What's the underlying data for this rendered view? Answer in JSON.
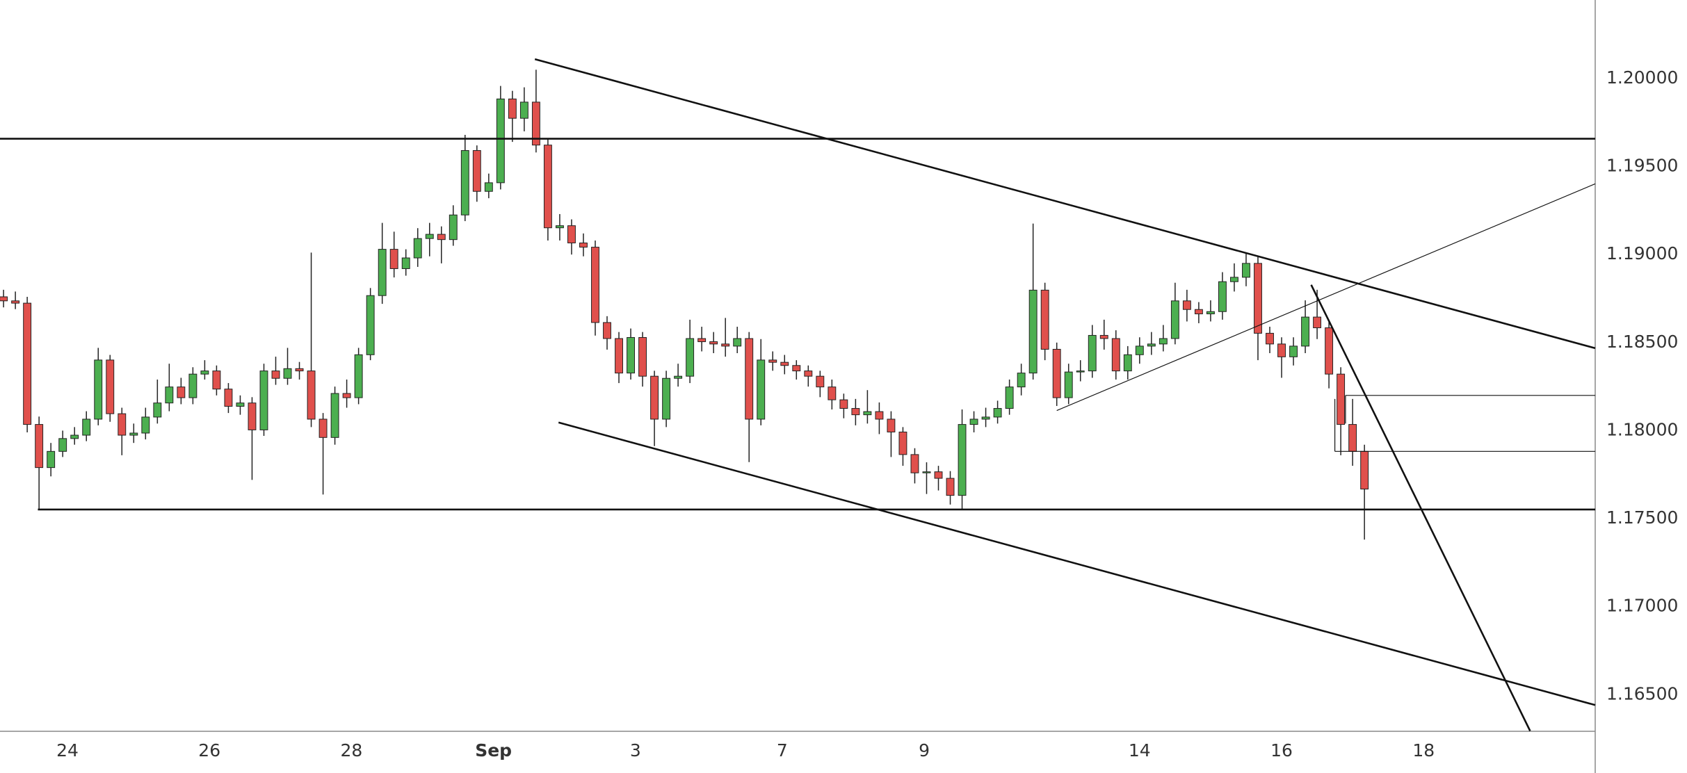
{
  "chart_data": {
    "type": "candlestick",
    "up_color": "#4caf50",
    "down_color": "#e0504c",
    "border_color": "#222222",
    "xlim": [
      -0.3,
      134.5
    ],
    "ylim": [
      1.16292,
      1.20446
    ],
    "yticks": [
      {
        "value": 1.2,
        "label": "1.20000"
      },
      {
        "value": 1.195,
        "label": "1.19500"
      },
      {
        "value": 1.19,
        "label": "1.19000"
      },
      {
        "value": 1.185,
        "label": "1.18500"
      },
      {
        "value": 1.18,
        "label": "1.18000"
      },
      {
        "value": 1.175,
        "label": "1.17500"
      },
      {
        "value": 1.17,
        "label": "1.17000"
      },
      {
        "value": 1.165,
        "label": "1.16500"
      }
    ],
    "xticks": [
      {
        "value": 5.4,
        "label": "24"
      },
      {
        "value": 17.4,
        "label": "26"
      },
      {
        "value": 29.4,
        "label": "28"
      },
      {
        "value": 41.4,
        "label": "Sep",
        "bold": true
      },
      {
        "value": 53.4,
        "label": "3"
      },
      {
        "value": 65.8,
        "label": "7"
      },
      {
        "value": 77.8,
        "label": "9"
      },
      {
        "value": 96,
        "label": "14"
      },
      {
        "value": 108,
        "label": "16"
      },
      {
        "value": 120,
        "label": "18"
      }
    ],
    "open": [
      1.1876,
      1.18737,
      1.18724,
      1.18035,
      1.1779,
      1.17882,
      1.17955,
      1.17974,
      1.18065,
      1.18401,
      1.18096,
      1.17974,
      1.17986,
      1.18077,
      1.18157,
      1.18248,
      1.18187,
      1.18321,
      1.18339,
      1.18236,
      1.18138,
      1.18157,
      1.18004,
      1.18339,
      1.18297,
      1.18352,
      1.18339,
      1.18065,
      1.17961,
      1.18211,
      1.18187,
      1.18431,
      1.18767,
      1.1903,
      1.1892,
      1.18981,
      1.19091,
      1.19115,
      1.19085,
      1.19225,
      1.19591,
      1.19359,
      1.19408,
      1.19884,
      1.19774,
      1.19866,
      1.19622,
      1.19152,
      1.19164,
      1.19066,
      1.19042,
      1.18614,
      1.18523,
      1.18327,
      1.18529,
      1.18309,
      1.18065,
      1.18297,
      1.18309,
      1.18523,
      1.18505,
      1.18492,
      1.1848,
      1.18523,
      1.18065,
      1.18401,
      1.18388,
      1.1837,
      1.18339,
      1.18309,
      1.18248,
      1.18175,
      1.18126,
      1.1809,
      1.18108,
      1.18065,
      1.17992,
      1.17864,
      1.1776,
      1.17766,
      1.17729,
      1.17632,
      1.18035,
      1.18065,
      1.18077,
      1.18126,
      1.18248,
      1.18327,
      1.18798,
      1.18462,
      1.18187,
      1.18333,
      1.18339,
      1.18541,
      1.18523,
      1.18339,
      1.18431,
      1.1848,
      1.18492,
      1.18523,
      1.18737,
      1.18688,
      1.18663,
      1.18676,
      1.18846,
      1.18871,
      1.1895,
      1.18553,
      1.18492,
      1.18419,
      1.1848,
      1.18645,
      1.18584,
      1.18321,
      1.18035,
      1.17882
    ],
    "high": [
      1.188,
      1.1879,
      1.1876,
      1.1808,
      1.1793,
      1.18,
      1.1802,
      1.1811,
      1.1847,
      1.1843,
      1.1813,
      1.1804,
      1.1813,
      1.1829,
      1.1838,
      1.183,
      1.1836,
      1.184,
      1.1837,
      1.1827,
      1.182,
      1.1819,
      1.1838,
      1.1842,
      1.1847,
      1.1839,
      1.19011,
      1.181,
      1.1825,
      1.1829,
      1.1847,
      1.1881,
      1.1918,
      1.1913,
      1.1903,
      1.1915,
      1.1918,
      1.1916,
      1.1928,
      1.1968,
      1.1962,
      1.1946,
      1.19958,
      1.1993,
      1.1995,
      1.2005,
      1.1966,
      1.1923,
      1.192,
      1.1912,
      1.1908,
      1.1865,
      1.1856,
      1.1858,
      1.1856,
      1.1834,
      1.1834,
      1.1838,
      1.1863,
      1.1859,
      1.1856,
      1.1864,
      1.1859,
      1.1856,
      1.1852,
      1.1845,
      1.1843,
      1.184,
      1.1837,
      1.1834,
      1.1829,
      1.1821,
      1.1818,
      1.1823,
      1.1816,
      1.1811,
      1.1802,
      1.179,
      1.1782,
      1.178,
      1.1777,
      1.1812,
      1.1811,
      1.1813,
      1.1817,
      1.1829,
      1.1838,
      1.19176,
      1.1884,
      1.185,
      1.1838,
      1.184,
      1.186,
      1.1863,
      1.1857,
      1.1848,
      1.1853,
      1.1856,
      1.186,
      1.1884,
      1.188,
      1.1873,
      1.1874,
      1.189,
      1.1895,
      1.1901,
      1.1899,
      1.1859,
      1.1853,
      1.1853,
      1.1874,
      1.188,
      1.1862,
      1.1836,
      1.1818,
      1.1792
    ],
    "low": [
      1.187,
      1.1869,
      1.1799,
      1.17552,
      1.1774,
      1.1785,
      1.1792,
      1.1794,
      1.1803,
      1.1805,
      1.1786,
      1.1793,
      1.1795,
      1.1804,
      1.1811,
      1.1815,
      1.1815,
      1.1829,
      1.182,
      1.181,
      1.1809,
      1.1772,
      1.1797,
      1.1826,
      1.1826,
      1.1829,
      1.1802,
      1.17637,
      1.1792,
      1.1813,
      1.1815,
      1.184,
      1.1872,
      1.1887,
      1.1888,
      1.1893,
      1.1899,
      1.1895,
      1.1905,
      1.1919,
      1.193,
      1.1932,
      1.1937,
      1.1964,
      1.197,
      1.1958,
      1.1908,
      1.1908,
      1.19,
      1.1899,
      1.1854,
      1.1846,
      1.1827,
      1.1829,
      1.1825,
      1.17912,
      1.1802,
      1.1825,
      1.1827,
      1.1845,
      1.1844,
      1.1842,
      1.1844,
      1.17821,
      1.1803,
      1.1834,
      1.1832,
      1.1829,
      1.1825,
      1.1819,
      1.1812,
      1.1807,
      1.1803,
      1.1804,
      1.1798,
      1.1785,
      1.178,
      1.177,
      1.1764,
      1.1766,
      1.1758,
      1.17552,
      1.1799,
      1.1802,
      1.1804,
      1.1809,
      1.182,
      1.1829,
      1.184,
      1.1814,
      1.1815,
      1.1828,
      1.183,
      1.1846,
      1.1829,
      1.1829,
      1.1838,
      1.1843,
      1.1845,
      1.1849,
      1.1862,
      1.1861,
      1.1862,
      1.1863,
      1.1879,
      1.1882,
      1.184,
      1.1844,
      1.183,
      1.1837,
      1.1844,
      1.1852,
      1.1824,
      1.1786,
      1.178,
      1.17381
    ],
    "close": [
      1.18737,
      1.18724,
      1.18035,
      1.1779,
      1.17882,
      1.17955,
      1.17974,
      1.18065,
      1.18401,
      1.18096,
      1.17974,
      1.17986,
      1.18077,
      1.18157,
      1.18248,
      1.18187,
      1.18321,
      1.18339,
      1.18236,
      1.18138,
      1.18157,
      1.18004,
      1.18339,
      1.18297,
      1.18352,
      1.18339,
      1.18065,
      1.17961,
      1.18211,
      1.18187,
      1.18431,
      1.18767,
      1.1903,
      1.1892,
      1.18981,
      1.19091,
      1.19115,
      1.19085,
      1.19225,
      1.19591,
      1.19359,
      1.19408,
      1.19884,
      1.19774,
      1.19866,
      1.19622,
      1.19152,
      1.19164,
      1.19066,
      1.19042,
      1.18614,
      1.18523,
      1.18327,
      1.18529,
      1.18309,
      1.18065,
      1.18297,
      1.18309,
      1.18523,
      1.18505,
      1.18492,
      1.1848,
      1.18523,
      1.18065,
      1.18401,
      1.18388,
      1.1837,
      1.18339,
      1.18309,
      1.18248,
      1.18175,
      1.18126,
      1.1809,
      1.18108,
      1.18065,
      1.17992,
      1.17864,
      1.1776,
      1.17766,
      1.17729,
      1.17632,
      1.18035,
      1.18065,
      1.18077,
      1.18126,
      1.18248,
      1.18327,
      1.18798,
      1.18462,
      1.18187,
      1.18333,
      1.18339,
      1.18541,
      1.18523,
      1.18339,
      1.18431,
      1.1848,
      1.18492,
      1.18523,
      1.18737,
      1.18688,
      1.18663,
      1.18676,
      1.18846,
      1.18871,
      1.1895,
      1.18553,
      1.18492,
      1.18419,
      1.1848,
      1.18645,
      1.18584,
      1.18321,
      1.18035,
      1.17882,
      1.17668
    ],
    "drawings": [
      {
        "x1": -0.3,
        "y1": 1.19658,
        "x2": 134.5,
        "y2": 1.19658,
        "weight": "thick"
      },
      {
        "x1": 2.9,
        "y1": 1.17552,
        "x2": 134.5,
        "y2": 1.17552,
        "weight": "thick"
      },
      {
        "x1": 44.9,
        "y1": 1.2011,
        "x2": 134.5,
        "y2": 1.18468,
        "weight": "thick"
      },
      {
        "x1": 46.9,
        "y1": 1.18046,
        "x2": 134.5,
        "y2": 1.16441,
        "weight": "thick"
      },
      {
        "x1": 89,
        "y1": 1.18114,
        "x2": 134.5,
        "y2": 1.19402,
        "weight": "thin"
      },
      {
        "x1": 110.5,
        "y1": 1.18828,
        "x2": 129,
        "y2": 1.16294,
        "weight": "thick"
      },
      {
        "x1": 113.4,
        "y1": 1.182,
        "x2": 134.5,
        "y2": 1.182,
        "weight": "thin"
      },
      {
        "x1": 113.4,
        "y1": 1.182,
        "x2": 113.4,
        "y2": 1.1804,
        "weight": "thin"
      },
      {
        "x1": 112.5,
        "y1": 1.17882,
        "x2": 134.5,
        "y2": 1.17882,
        "weight": "thin"
      },
      {
        "x1": 112.5,
        "y1": 1.1818,
        "x2": 112.5,
        "y2": 1.17882,
        "weight": "thin"
      }
    ]
  }
}
